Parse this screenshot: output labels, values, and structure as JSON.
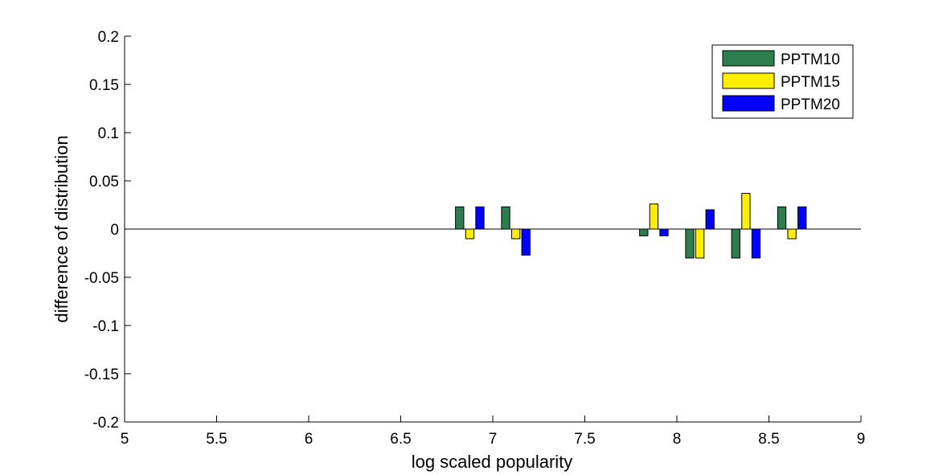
{
  "chart_data": {
    "type": "bar",
    "title": "",
    "xlabel": "log scaled popularity",
    "ylabel": "difference of distribution",
    "xlim": [
      5,
      9
    ],
    "ylim": [
      -0.2,
      0.2
    ],
    "xticks": [
      "5",
      "5.5",
      "6",
      "6.5",
      "7",
      "7.5",
      "8",
      "8.5",
      "9"
    ],
    "yticks": [
      "0.2",
      "0.15",
      "0.1",
      "0.05",
      "0",
      "-0.05",
      "-0.1",
      "-0.15",
      "-0.2"
    ],
    "grid": false,
    "legend_position": "top-right",
    "categories": [
      6.875,
      7.125,
      7.875,
      8.125,
      8.375,
      8.625
    ],
    "series": [
      {
        "name": "PPTM10",
        "color": "#2e7d4f",
        "values": [
          0.023,
          0.023,
          -0.007,
          -0.03,
          -0.03,
          0.023
        ]
      },
      {
        "name": "PPTM15",
        "color": "#ffee00",
        "values": [
          -0.01,
          -0.01,
          0.026,
          -0.03,
          0.037,
          -0.01
        ]
      },
      {
        "name": "PPTM20",
        "color": "#0000ff",
        "values": [
          0.023,
          -0.027,
          -0.007,
          0.02,
          -0.03,
          0.023
        ]
      }
    ]
  }
}
